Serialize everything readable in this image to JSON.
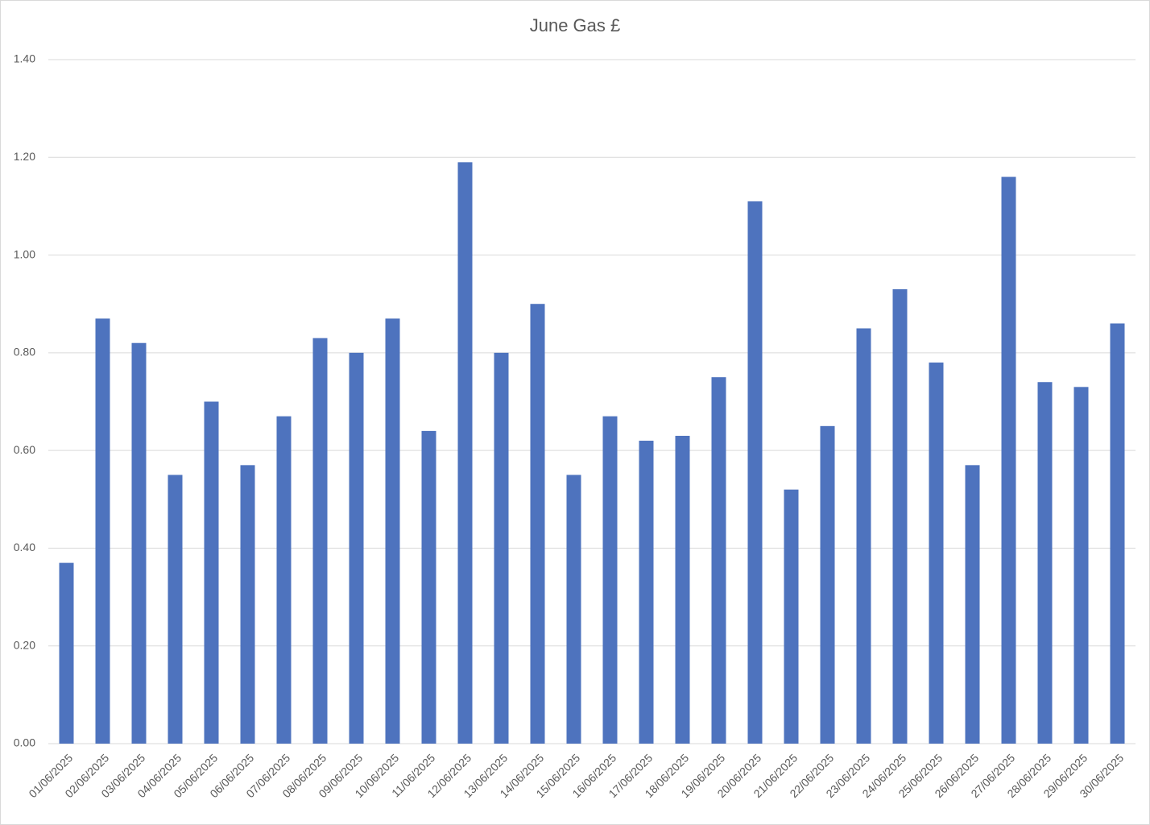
{
  "chart_data": {
    "type": "bar",
    "title": "June Gas £",
    "categories": [
      "01/06/2025",
      "02/06/2025",
      "03/06/2025",
      "04/06/2025",
      "05/06/2025",
      "06/06/2025",
      "07/06/2025",
      "08/06/2025",
      "09/06/2025",
      "10/06/2025",
      "11/06/2025",
      "12/06/2025",
      "13/06/2025",
      "14/06/2025",
      "15/06/2025",
      "16/06/2025",
      "17/06/2025",
      "18/06/2025",
      "19/06/2025",
      "20/06/2025",
      "21/06/2025",
      "22/06/2025",
      "23/06/2025",
      "24/06/2025",
      "25/06/2025",
      "26/06/2025",
      "27/06/2025",
      "28/06/2025",
      "29/06/2025",
      "30/06/2025"
    ],
    "values": [
      0.37,
      0.87,
      0.82,
      0.55,
      0.7,
      0.57,
      0.67,
      0.83,
      0.8,
      0.87,
      0.64,
      1.19,
      0.8,
      0.9,
      0.55,
      0.67,
      0.62,
      0.63,
      0.75,
      1.11,
      0.52,
      0.65,
      0.85,
      0.93,
      0.78,
      0.57,
      1.16,
      0.74,
      0.73,
      0.86
    ],
    "color": "#4e73be",
    "ylim": [
      0,
      1.4
    ],
    "yticks": [
      {
        "value": 0,
        "label": "0.00"
      },
      {
        "value": 0.2,
        "label": "0.20"
      },
      {
        "value": 0.4,
        "label": "0.40"
      },
      {
        "value": 0.6,
        "label": "0.60"
      },
      {
        "value": 0.8,
        "label": "0.80"
      },
      {
        "value": 1,
        "label": "1.00"
      },
      {
        "value": 1.2,
        "label": "1.20"
      },
      {
        "value": 1.4,
        "label": "1.40"
      }
    ],
    "grid": true
  }
}
